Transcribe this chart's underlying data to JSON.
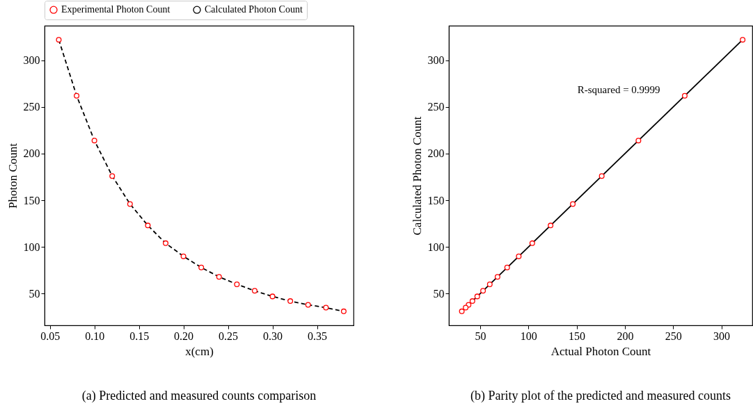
{
  "chart_data": [
    {
      "type": "scatter",
      "xlabel": "x(cm)",
      "ylabel": "Photon Count",
      "x": [
        0.06,
        0.08,
        0.1,
        0.12,
        0.14,
        0.16,
        0.18,
        0.2,
        0.22,
        0.24,
        0.26,
        0.28,
        0.3,
        0.32,
        0.34,
        0.36,
        0.38
      ],
      "series": [
        {
          "name": "Experimental Photon Count",
          "color": "#ff0000",
          "marker": "circle",
          "values": [
            322,
            262,
            214,
            176,
            146,
            123,
            104,
            90,
            78,
            68,
            60,
            53,
            47,
            42,
            38,
            35,
            31
          ]
        },
        {
          "name": "Calculated Photon Count",
          "type": "line",
          "line_style": "dashed",
          "color": "#000000",
          "values": [
            322,
            262,
            214,
            176,
            146,
            123,
            104,
            90,
            78,
            68,
            60,
            53,
            47,
            42,
            38,
            35,
            31
          ]
        }
      ],
      "legend": "top",
      "xlim": [
        0.044,
        0.391
      ],
      "ylim": [
        16,
        337
      ],
      "xticks": [
        0.05,
        {
          "value": 0.1,
          "label": "0.10"
        },
        0.15,
        {
          "value": 0.2,
          "label": "0.20"
        },
        0.25,
        {
          "value": 0.3,
          "label": "0.30"
        },
        0.35
      ],
      "yticks": [
        50,
        100,
        150,
        200,
        250,
        300
      ],
      "annotations": [
        "(a) Predicted and measured counts comparison"
      ]
    },
    {
      "type": "scatter",
      "xlabel": "Actual Photon Count",
      "ylabel": "Calculated Photon Count",
      "series": [
        {
          "color": "#ff0000",
          "marker": "circle",
          "x": [
            322,
            262,
            214,
            176,
            146,
            123,
            104,
            90,
            78,
            68,
            60,
            53,
            47,
            42,
            38,
            35,
            31
          ],
          "values": [
            322,
            262,
            214,
            176,
            146,
            123,
            104,
            90,
            78,
            68,
            60,
            53,
            47,
            42,
            38,
            35,
            31
          ]
        },
        {
          "type": "line",
          "line_style": "solid",
          "color": "#000000",
          "x": [
            31,
            322
          ],
          "values": [
            31,
            322
          ]
        }
      ],
      "xlim": [
        17.6,
        332
      ],
      "ylim": [
        16,
        337
      ],
      "xticks": [
        50,
        100,
        150,
        200,
        250,
        300
      ],
      "yticks": [
        50,
        100,
        150,
        200,
        250,
        300
      ],
      "annotations": [
        "R-squared = 0.9999",
        "(b) Parity plot of the predicted and measured counts"
      ]
    }
  ]
}
